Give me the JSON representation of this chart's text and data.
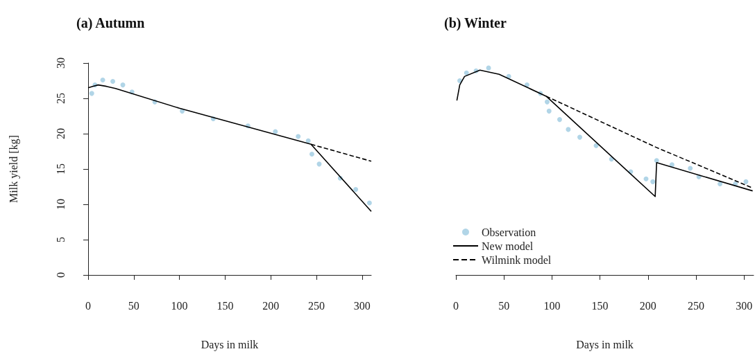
{
  "chart_data": [
    {
      "type": "line",
      "title": "(a) Autumn",
      "xlabel": "Days in milk",
      "ylabel": "Milk yield [kg]",
      "xlim": [
        0,
        310
      ],
      "ylim": [
        0,
        30
      ],
      "xticks": [
        0,
        50,
        100,
        150,
        200,
        250,
        300
      ],
      "yticks": [
        0,
        5,
        10,
        15,
        20,
        25,
        30
      ],
      "grid": false,
      "legend": false,
      "series": [
        {
          "type": "scatter",
          "color": "#9ecae1",
          "marker": "circle",
          "x": [
            4,
            7.5,
            16,
            27,
            38,
            48,
            73,
            103,
            137,
            175,
            205,
            230,
            241,
            245,
            253,
            276,
            293,
            308
          ],
          "values": [
            25.7,
            26.9,
            27.6,
            27.4,
            26.9,
            25.9,
            24.5,
            23.2,
            22.1,
            21.1,
            20.3,
            19.6,
            19.0,
            17.1,
            15.7,
            13.7,
            12.1,
            10.2
          ]
        },
        {
          "type": "line",
          "color": "#000000",
          "line_style": "solid",
          "x": [
            0,
            5,
            11,
            20,
            30,
            100,
            244,
            310
          ],
          "values": [
            26.5,
            26.7,
            26.9,
            26.7,
            26.4,
            23.6,
            18.5,
            9.0
          ]
        },
        {
          "type": "line",
          "color": "#000000",
          "line_style": "dashed",
          "x": [
            244,
            310
          ],
          "values": [
            18.5,
            16.1
          ]
        }
      ]
    },
    {
      "type": "line",
      "title": "(b) Winter",
      "xlabel": "Days in milk",
      "xlim": [
        0,
        310
      ],
      "ylim": [
        0,
        30
      ],
      "xticks": [
        0,
        50,
        100,
        150,
        200,
        250,
        300
      ],
      "yticks": [
        0,
        5,
        10,
        15,
        20,
        25,
        30
      ],
      "tick_labels": "x",
      "grid": false,
      "legend": "bottom left",
      "series": [
        {
          "type": "scatter",
          "name": "Observation",
          "color": "#9ecae1",
          "marker": "circle",
          "x": [
            4,
            11,
            21,
            34,
            55,
            74,
            88,
            95,
            97,
            108,
            117,
            129,
            146,
            162,
            182,
            198,
            205,
            209,
            225,
            244,
            253,
            275,
            291,
            302
          ],
          "values": [
            27.5,
            28.6,
            28.9,
            29.3,
            28.1,
            26.9,
            25.7,
            24.5,
            23.2,
            22.0,
            20.6,
            19.5,
            18.3,
            16.4,
            14.6,
            13.6,
            13.2,
            16.2,
            15.6,
            15.1,
            13.9,
            12.9,
            12.9,
            13.2
          ]
        },
        {
          "type": "line",
          "name": "New model",
          "color": "#000000",
          "line_style": "solid",
          "x": [
            1,
            4,
            9,
            25,
            45,
            94,
            207.5,
            209,
            309
          ],
          "values": [
            24.7,
            26.9,
            28.1,
            29.0,
            28.4,
            25.3,
            11.1,
            15.9,
            11.9
          ]
        },
        {
          "type": "line",
          "name": "Wilmink model",
          "color": "#000000",
          "line_style": "dashed",
          "x": [
            94,
            208,
            309
          ],
          "values": [
            25.3,
            18.1,
            12.3
          ]
        }
      ]
    }
  ]
}
